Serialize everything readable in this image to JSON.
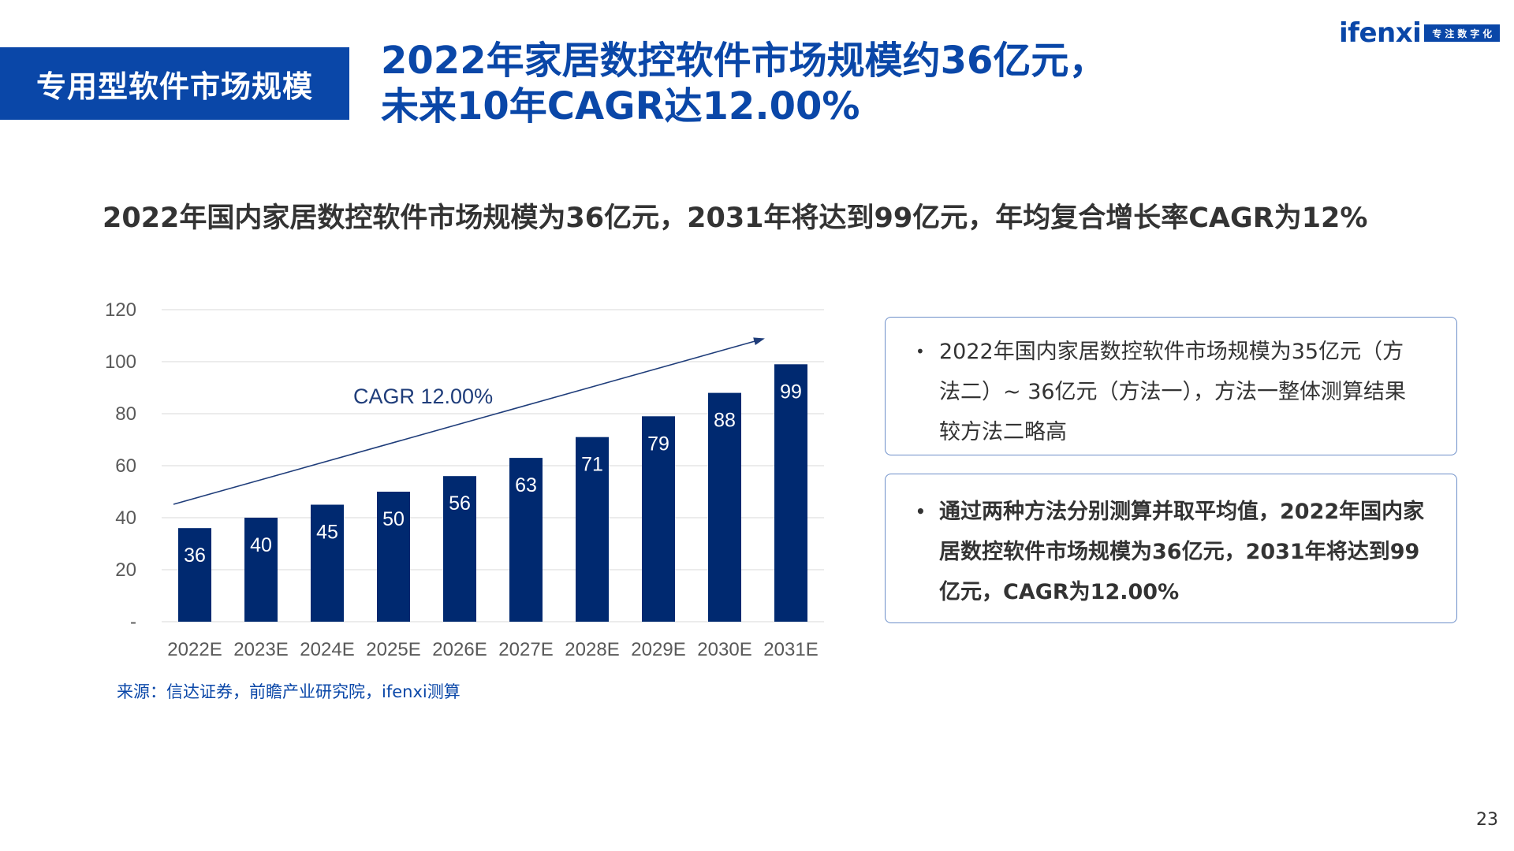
{
  "section_label": "专用型软件市场规模",
  "headline": {
    "line1": "2022年家居数控软件市场规模约36亿元，",
    "line2": "未来10年CAGR达12.00%"
  },
  "logo": {
    "word": "ifenxi",
    "tag": "专注数字化"
  },
  "subtitle": "2022年国内家居数控软件市场规模为36亿元，2031年将达到99亿元，年均复合增长率CAGR为12%",
  "chart_data": {
    "type": "bar",
    "categories": [
      "2022E",
      "2023E",
      "2024E",
      "2025E",
      "2026E",
      "2027E",
      "2028E",
      "2029E",
      "2030E",
      "2031E"
    ],
    "values": [
      36,
      40,
      45,
      50,
      56,
      63,
      71,
      79,
      88,
      99
    ],
    "data_labels": [
      "36",
      "40",
      "45",
      "50",
      "56",
      "63",
      "71",
      "79",
      "88",
      "99"
    ],
    "yticks": [
      "-",
      "20",
      "40",
      "60",
      "80",
      "100",
      "120"
    ],
    "ytick_values": [
      0,
      20,
      40,
      60,
      80,
      100,
      120
    ],
    "ylim": [
      0,
      120
    ],
    "grid": true,
    "bar_color": "#002970",
    "annotation": "CAGR 12.00%",
    "title": "",
    "xlabel": "",
    "ylabel": ""
  },
  "source": "来源：信达证券，前瞻产业研究院，ifenxi测算",
  "notes": [
    "2022年国内家居数控软件市场规模为35亿元（方法二）~ 36亿元（方法一），方法一整体测算结果较方法二略高",
    "通过两种方法分别测算并取平均值，2022年国内家居数控软件市场规模为36亿元，2031年将达到99亿元，CAGR为12.00%"
  ],
  "bullet_symbol": "•",
  "page_number": "23",
  "colors": {
    "brand_blue": "#0a47a8",
    "bar_navy": "#002970"
  }
}
